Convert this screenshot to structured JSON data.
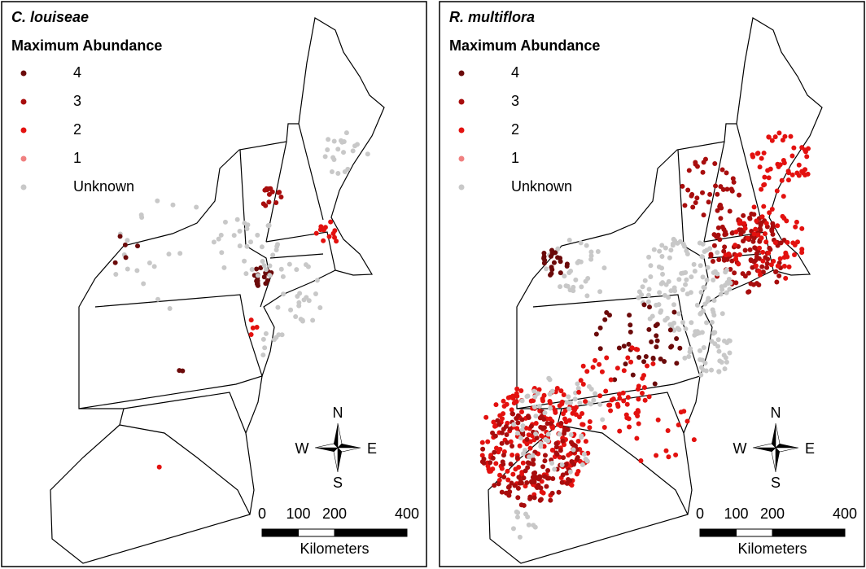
{
  "panels": [
    {
      "title": "C. louiseae",
      "legend": {
        "title": "Maximum Abundance",
        "items": [
          {
            "label": "4",
            "color": "#6b0a0a"
          },
          {
            "label": "3",
            "color": "#a80d0d"
          },
          {
            "label": "2",
            "color": "#e3110f"
          },
          {
            "label": "1",
            "color": "#f08080"
          },
          {
            "label": "Unknown",
            "color": "#c8c8c8"
          }
        ]
      },
      "compass": {
        "n": "N",
        "e": "E",
        "s": "S",
        "w": "W"
      },
      "scale_bar": {
        "ticks": [
          0,
          100,
          200,
          400
        ],
        "unit": "Kilometers"
      }
    },
    {
      "title": "R. multiflora",
      "legend": {
        "title": "Maximum Abundance",
        "items": [
          {
            "label": "4",
            "color": "#6b0a0a"
          },
          {
            "label": "3",
            "color": "#a80d0d"
          },
          {
            "label": "2",
            "color": "#e3110f"
          },
          {
            "label": "1",
            "color": "#f08080"
          },
          {
            "label": "Unknown",
            "color": "#c8c8c8"
          }
        ]
      },
      "compass": {
        "n": "N",
        "e": "E",
        "s": "S",
        "w": "W"
      },
      "scale_bar": {
        "ticks": [
          0,
          100,
          200,
          400
        ],
        "unit": "Kilometers"
      }
    }
  ]
}
